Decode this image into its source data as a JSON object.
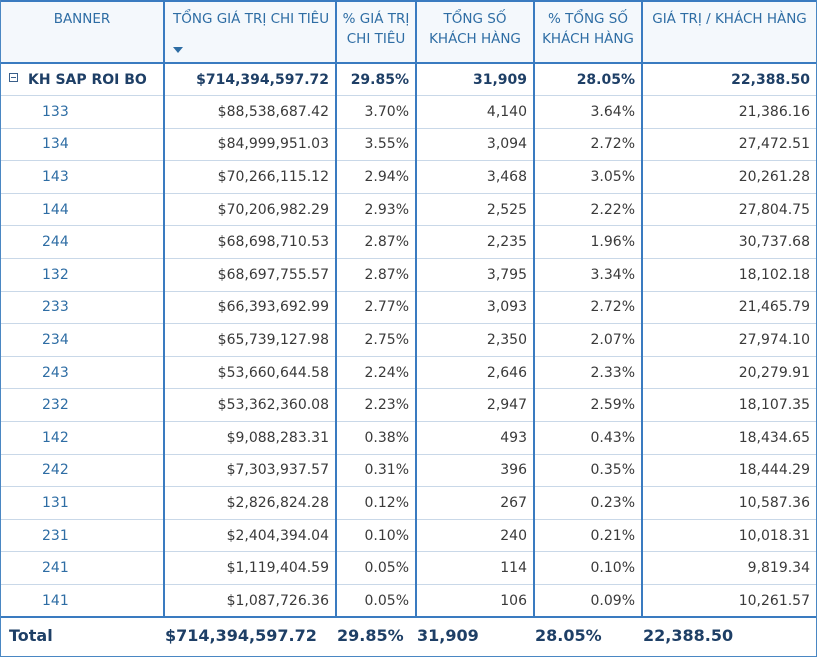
{
  "columns": [
    "BANNER",
    "TỔNG GIÁ TRỊ CHI TIÊU",
    "% GIÁ TRỊ CHI TIÊU",
    "TỔNG SỐ KHÁCH HÀNG",
    "% TỔNG SỐ KHÁCH HÀNG",
    "GIÁ TRỊ / KHÁCH HÀNG"
  ],
  "header": {
    "c2": "TỔNG GIÁ TRỊ CHI TIÊU",
    "c3a": "% GIÁ TRỊ",
    "c3b": "CHI TIÊU",
    "c4a": "TỔNG SỐ",
    "c4b": "KHÁCH HÀNG",
    "c5a": "% TỔNG SỐ",
    "c5b": "KHÁCH HÀNG",
    "c6": "GIÁ TRỊ / KHÁCH HÀNG"
  },
  "sort": {
    "column": "TỔNG GIÁ TRỊ CHI TIÊU",
    "direction": "descending"
  },
  "group": {
    "label": "KH SAP ROI BO",
    "values": [
      "$714,394,597.72",
      "29.85%",
      "31,909",
      "28.05%",
      "22,388.50"
    ]
  },
  "rows": [
    [
      "133",
      "$88,538,687.42",
      "3.70%",
      "4,140",
      "3.64%",
      "21,386.16"
    ],
    [
      "134",
      "$84,999,951.03",
      "3.55%",
      "3,094",
      "2.72%",
      "27,472.51"
    ],
    [
      "143",
      "$70,266,115.12",
      "2.94%",
      "3,468",
      "3.05%",
      "20,261.28"
    ],
    [
      "144",
      "$70,206,982.29",
      "2.93%",
      "2,525",
      "2.22%",
      "27,804.75"
    ],
    [
      "244",
      "$68,698,710.53",
      "2.87%",
      "2,235",
      "1.96%",
      "30,737.68"
    ],
    [
      "132",
      "$68,697,755.57",
      "2.87%",
      "3,795",
      "3.34%",
      "18,102.18"
    ],
    [
      "233",
      "$66,393,692.99",
      "2.77%",
      "3,093",
      "2.72%",
      "21,465.79"
    ],
    [
      "234",
      "$65,739,127.98",
      "2.75%",
      "2,350",
      "2.07%",
      "27,974.10"
    ],
    [
      "243",
      "$53,660,644.58",
      "2.24%",
      "2,646",
      "2.33%",
      "20,279.91"
    ],
    [
      "232",
      "$53,362,360.08",
      "2.23%",
      "2,947",
      "2.59%",
      "18,107.35"
    ],
    [
      "142",
      "$9,088,283.31",
      "0.38%",
      "493",
      "0.43%",
      "18,434.65"
    ],
    [
      "242",
      "$7,303,937.57",
      "0.31%",
      "396",
      "0.35%",
      "18,444.29"
    ],
    [
      "131",
      "$2,826,824.28",
      "0.12%",
      "267",
      "0.23%",
      "10,587.36"
    ],
    [
      "231",
      "$2,404,394.04",
      "0.10%",
      "240",
      "0.21%",
      "10,018.31"
    ],
    [
      "241",
      "$1,119,404.59",
      "0.05%",
      "114",
      "0.10%",
      "9,819.34"
    ],
    [
      "141",
      "$1,087,726.36",
      "0.05%",
      "106",
      "0.09%",
      "10,261.57"
    ]
  ],
  "total": {
    "label": "Total",
    "values": [
      "$714,394,597.72",
      "29.85%",
      "31,909",
      "28.05%",
      "22,388.50"
    ]
  },
  "colors": {
    "accent": "#3a7bc0",
    "header_text": "#2e6da4",
    "bold_text": "#1e3f66",
    "row_divider": "#c9d8e8"
  },
  "icons": {
    "group_toggle": "collapse-minus-icon",
    "sort": "sort-descending-icon"
  }
}
